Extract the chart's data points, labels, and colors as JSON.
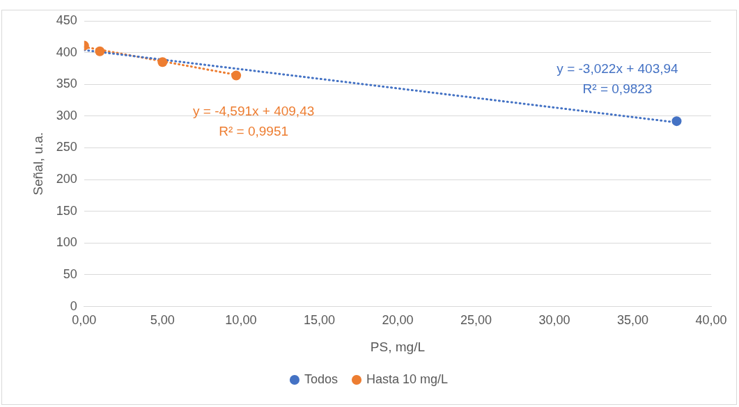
{
  "chart_data": {
    "type": "scatter",
    "xlabel": "PS, mg/L",
    "ylabel": "Señal, u.a.",
    "xlim": [
      0,
      40
    ],
    "xticks": [
      {
        "value": 0,
        "label": "0,00"
      },
      {
        "value": 5,
        "label": "5,00"
      },
      {
        "value": 10,
        "label": "10,00"
      },
      {
        "value": 15,
        "label": "15,00"
      },
      {
        "value": 20,
        "label": "20,00"
      },
      {
        "value": 25,
        "label": "25,00"
      },
      {
        "value": 30,
        "label": "30,00"
      },
      {
        "value": 35,
        "label": "35,00"
      },
      {
        "value": 40,
        "label": "40,00"
      }
    ],
    "ylim": [
      0,
      450
    ],
    "yticks": [
      0,
      50,
      100,
      150,
      200,
      250,
      300,
      350,
      400,
      450
    ],
    "grid": "y",
    "legend": "bottom",
    "marker": "circle",
    "series": [
      {
        "name": "Todos",
        "color": "#4472c4",
        "x": [
          37.8
        ],
        "values": [
          292
        ]
      },
      {
        "name": "Hasta 10 mg/L",
        "color": "#ed7d31",
        "x": [
          0,
          1,
          5,
          9.7
        ],
        "values": [
          411,
          402,
          385,
          364
        ]
      },
      {
        "type": "line",
        "color": "#4472c4",
        "x": [
          0,
          37.8
        ],
        "values": [
          404,
          290
        ],
        "marker": "none",
        "line_style": "dotted"
      },
      {
        "type": "line",
        "color": "#ed7d31",
        "x": [
          0,
          9.7
        ],
        "values": [
          409,
          365
        ],
        "marker": "none",
        "line_style": "dotted"
      }
    ],
    "annotations": [
      "y = -3,022x + 403,94\nR² = 0,9823",
      "y = -4,591x + 409,43\nR² = 0,9951"
    ]
  }
}
